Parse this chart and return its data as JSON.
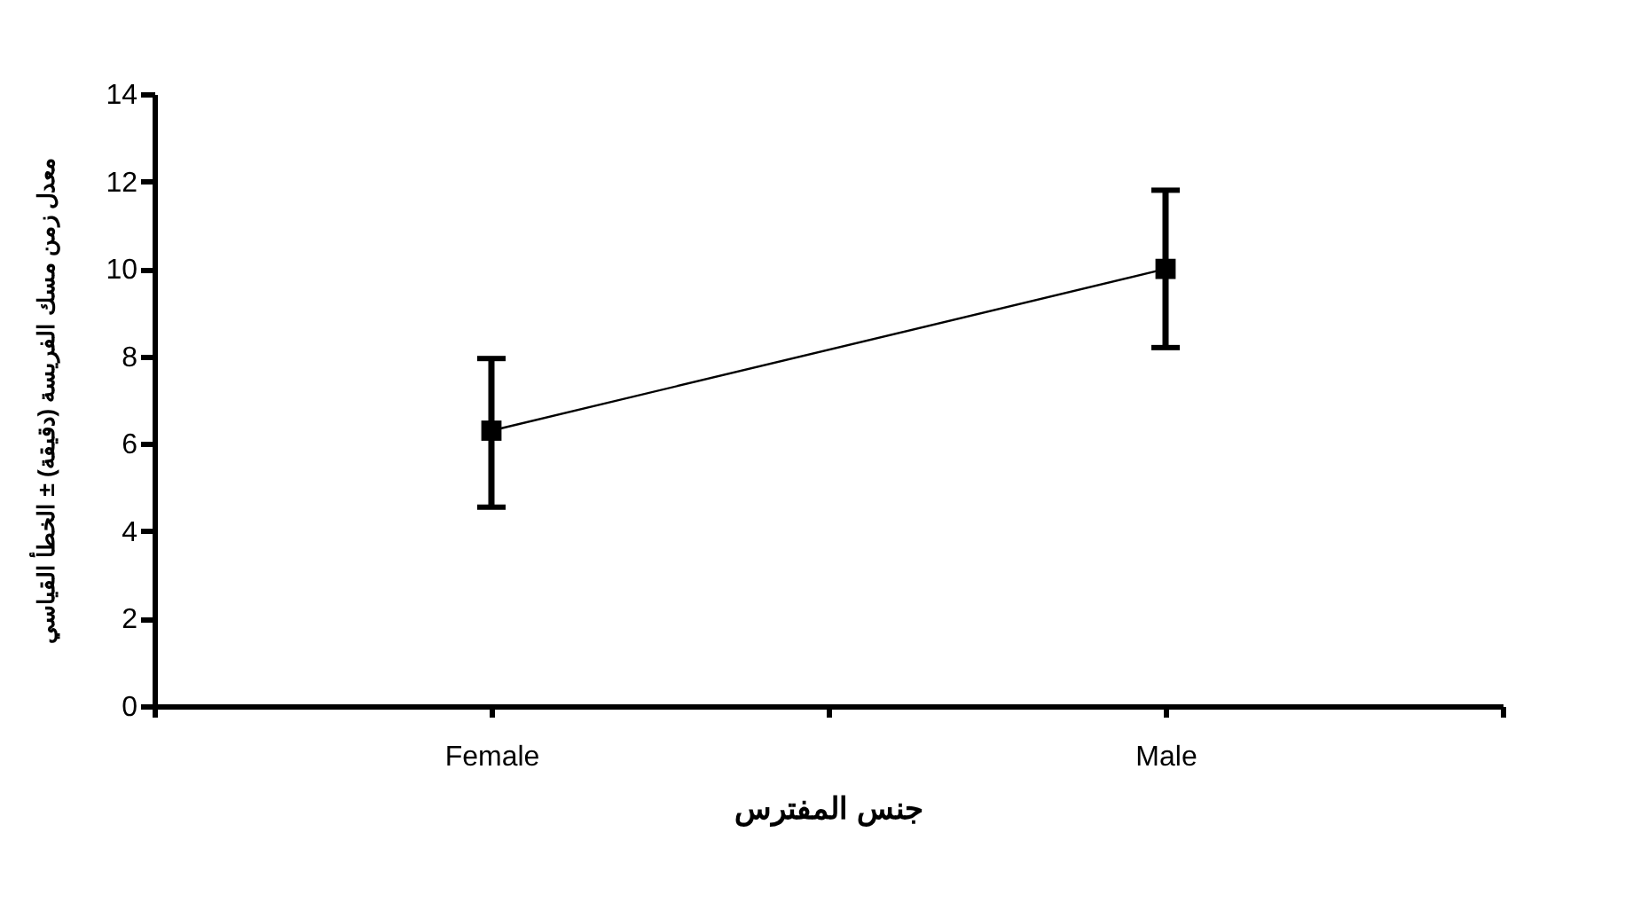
{
  "chart_data": {
    "type": "line",
    "xlabel": "جنس المفترس",
    "ylabel": "معدل زمن مسك الفريسة (دقيقة) ± الخطأ القياسي",
    "categories": [
      "Female",
      "Male"
    ],
    "values": [
      6.3,
      10.0
    ],
    "errors": [
      [
        4.55,
        7.95
      ],
      [
        8.2,
        11.8
      ]
    ],
    "color": "#000000",
    "marker": "square",
    "line_style": "solid",
    "ylim": [
      0,
      14
    ],
    "yticks": [
      0,
      2,
      4,
      6,
      8,
      10,
      12,
      14
    ],
    "grid": false
  }
}
